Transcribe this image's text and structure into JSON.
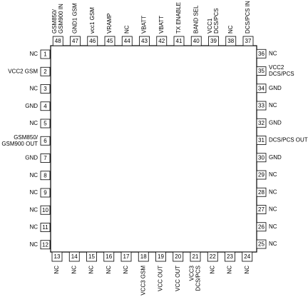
{
  "pins": {
    "left": [
      {
        "number": 1,
        "lines": [
          "NC"
        ]
      },
      {
        "number": 2,
        "lines": [
          "VCC2 GSM"
        ]
      },
      {
        "number": 3,
        "lines": [
          "NC"
        ]
      },
      {
        "number": 4,
        "lines": [
          "GND"
        ]
      },
      {
        "number": 5,
        "lines": [
          "NC"
        ]
      },
      {
        "number": 6,
        "lines": [
          "GSM850/",
          "GSM900 OUT"
        ]
      },
      {
        "number": 7,
        "lines": [
          "GND"
        ]
      },
      {
        "number": 8,
        "lines": [
          "NC"
        ]
      },
      {
        "number": 9,
        "lines": [
          "NC"
        ]
      },
      {
        "number": 10,
        "lines": [
          "NC"
        ]
      },
      {
        "number": 11,
        "lines": [
          "NC"
        ]
      },
      {
        "number": 12,
        "lines": [
          "NC"
        ]
      }
    ],
    "bottom": [
      {
        "number": 13,
        "lines": [
          "NC"
        ]
      },
      {
        "number": 14,
        "lines": [
          "NC"
        ]
      },
      {
        "number": 15,
        "lines": [
          "NC"
        ]
      },
      {
        "number": 16,
        "lines": [
          "NC"
        ]
      },
      {
        "number": 17,
        "lines": [
          "NC"
        ]
      },
      {
        "number": 18,
        "lines": [
          "VCC3 GSM"
        ]
      },
      {
        "number": 19,
        "lines": [
          "VCC OUT"
        ]
      },
      {
        "number": 20,
        "lines": [
          "VCC OUT"
        ]
      },
      {
        "number": 21,
        "lines": [
          "VCC3",
          "DCS/PCS"
        ]
      },
      {
        "number": 22,
        "lines": [
          "NC"
        ]
      },
      {
        "number": 23,
        "lines": [
          "NC"
        ]
      },
      {
        "number": 24,
        "lines": [
          "NC"
        ]
      }
    ],
    "right": [
      {
        "number": 25,
        "lines": [
          "NC"
        ]
      },
      {
        "number": 26,
        "lines": [
          "NC"
        ]
      },
      {
        "number": 27,
        "lines": [
          "NC"
        ]
      },
      {
        "number": 28,
        "lines": [
          "NC"
        ]
      },
      {
        "number": 29,
        "lines": [
          "NC"
        ]
      },
      {
        "number": 30,
        "lines": [
          "GND"
        ]
      },
      {
        "number": 31,
        "lines": [
          "DCS/PCS OUT"
        ]
      },
      {
        "number": 32,
        "lines": [
          "GND"
        ]
      },
      {
        "number": 33,
        "lines": [
          "NC"
        ]
      },
      {
        "number": 34,
        "lines": [
          "GND"
        ]
      },
      {
        "number": 35,
        "lines": [
          "VCC2",
          "DCS/PCS"
        ]
      },
      {
        "number": 36,
        "lines": [
          "NC"
        ]
      }
    ],
    "top": [
      {
        "number": 37,
        "lines": [
          "DCS/PCS IN"
        ]
      },
      {
        "number": 38,
        "lines": [
          "NC"
        ]
      },
      {
        "number": 39,
        "lines": [
          "VCC1",
          "DCS/PCS"
        ]
      },
      {
        "number": 40,
        "lines": [
          "BAND SEL"
        ]
      },
      {
        "number": 41,
        "lines": [
          "TX ENABLE"
        ]
      },
      {
        "number": 42,
        "lines": [
          "VBATT"
        ]
      },
      {
        "number": 43,
        "lines": [
          "VBATT"
        ]
      },
      {
        "number": 44,
        "lines": [
          "NC"
        ]
      },
      {
        "number": 45,
        "lines": [
          "VRAMP"
        ]
      },
      {
        "number": 46,
        "lines": [
          "vcc1 GSM"
        ]
      },
      {
        "number": 47,
        "lines": [
          "GND1 GSM"
        ]
      },
      {
        "number": 48,
        "lines": [
          "GSM850/",
          "GSM900 IN"
        ]
      }
    ]
  }
}
